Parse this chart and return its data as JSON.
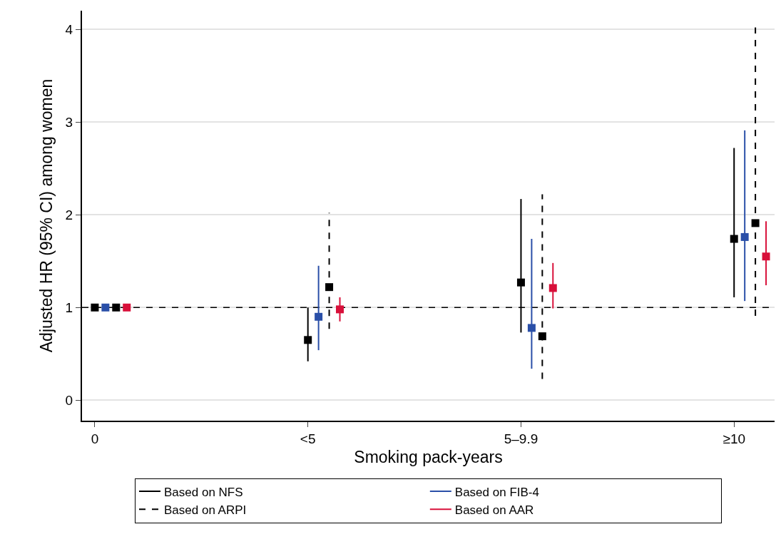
{
  "chart_data": {
    "type": "scatter",
    "xlabel": "Smoking pack-years",
    "ylabel": "Adjusted HR (95% CI) among women",
    "categories": [
      "0",
      "<5",
      "5–9.9",
      "≥10"
    ],
    "series": [
      {
        "name": "Based on NFS",
        "color": "#000000",
        "line_style": "solid",
        "values": [
          1,
          0.65,
          1.27,
          1.74
        ],
        "errors": [
          null,
          [
            0.42,
            1.0
          ],
          [
            0.73,
            2.17
          ],
          [
            1.11,
            2.72
          ]
        ]
      },
      {
        "name": "Based on FIB-4",
        "color": "#2a4fa8",
        "line_style": "solid",
        "values": [
          1,
          0.9,
          0.78,
          1.76
        ],
        "errors": [
          null,
          [
            0.54,
            1.45
          ],
          [
            0.34,
            1.74
          ],
          [
            1.07,
            2.91
          ]
        ]
      },
      {
        "name": "Based on ARPI",
        "color": "#000000",
        "line_style": "dashed",
        "values": [
          1,
          1.22,
          0.69,
          1.91
        ],
        "errors": [
          null,
          [
            0.77,
            2.02
          ],
          [
            0.23,
            2.22
          ],
          [
            0.91,
            4.02
          ]
        ]
      },
      {
        "name": "Based on AAR",
        "color": "#d8103a",
        "line_style": "solid",
        "values": [
          1,
          0.98,
          1.21,
          1.55
        ],
        "errors": [
          null,
          [
            0.85,
            1.11
          ],
          [
            0.99,
            1.48
          ],
          [
            1.24,
            1.93
          ]
        ]
      }
    ],
    "marker": "square",
    "ylim": [
      -0.22,
      4.2
    ],
    "yticks": [
      0,
      1,
      2,
      3,
      4
    ],
    "grid": "y",
    "legend": "bottom",
    "ref_lines": [
      {
        "axis": "y",
        "value": 1,
        "label": null,
        "color": "#000000",
        "line_style": "dashed"
      }
    ]
  }
}
